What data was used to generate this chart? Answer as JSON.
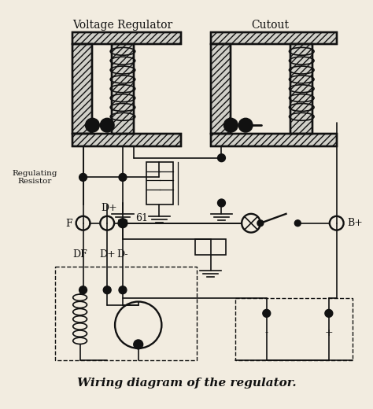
{
  "title": "Wiring diagram of the regulator.",
  "label_voltage_regulator": "Voltage Regulator",
  "label_cutout": "Cutout",
  "label_regulating_resistor": "Regulating\nResistor",
  "label_F": "F",
  "label_D_plus": "D+",
  "label_61": "61",
  "label_B_plus": "B+",
  "label_DF": "DF",
  "label_D_plus2": "D+",
  "label_D_minus": "D-",
  "label_minus": "-",
  "label_plus": "+",
  "bg_color": "#f2ece0",
  "line_color": "#111111",
  "title_fontsize": 11,
  "label_fontsize": 8
}
